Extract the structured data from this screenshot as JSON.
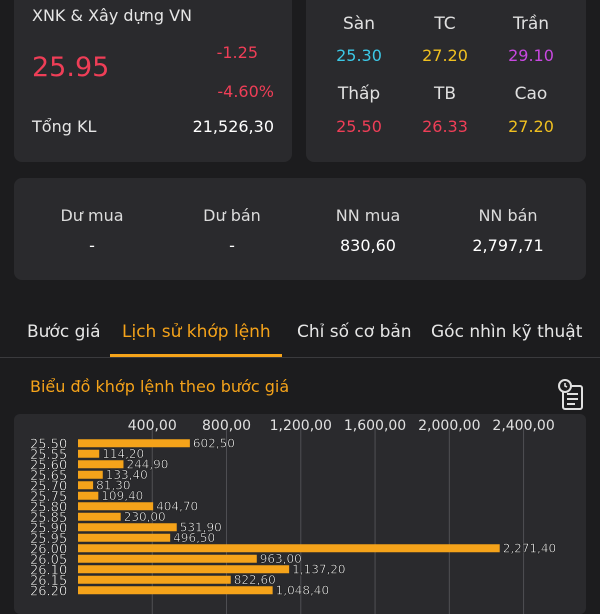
{
  "quote": {
    "name": "XNK & Xây dựng VN",
    "price": "25.95",
    "change": "-1.25",
    "change_pct": "-4.60%",
    "volume_label": "Tổng KL",
    "volume_value": "21,526,30"
  },
  "range": {
    "items": [
      {
        "label": "Sàn",
        "value": "25.30",
        "color": "#3cc8e6"
      },
      {
        "label": "TC",
        "value": "27.20",
        "color": "#f0c020"
      },
      {
        "label": "Trần",
        "value": "29.10",
        "color": "#c848e0"
      },
      {
        "label": "Thấp",
        "value": "25.50",
        "color": "#ef3e57"
      },
      {
        "label": "TB",
        "value": "26.33",
        "color": "#ef3e57"
      },
      {
        "label": "Cao",
        "value": "27.20",
        "color": "#f0c020"
      }
    ]
  },
  "flow": {
    "items": [
      {
        "label": "Dư mua",
        "value": "-"
      },
      {
        "label": "Dư bán",
        "value": "-"
      },
      {
        "label": "NN mua",
        "value": "830,60"
      },
      {
        "label": "NN bán",
        "value": "2,797,71"
      }
    ]
  },
  "tabs": [
    {
      "label": "Bước giá",
      "active": false
    },
    {
      "label": "Lịch sử khớp lệnh",
      "active": true
    },
    {
      "label": "Chỉ số cơ bản",
      "active": false
    },
    {
      "label": "Góc nhìn kỹ thuật",
      "active": false
    }
  ],
  "chart_section": {
    "title": "Biểu đồ khớp lệnh theo bước giá",
    "icon": "calendar-icon"
  },
  "chart_data": {
    "type": "bar",
    "orientation": "horizontal",
    "bar_color": "#f5a31a",
    "xticks": [
      "400,00",
      "800,00",
      "1,200,00",
      "1,600,00",
      "2,000,00",
      "2,400,00"
    ],
    "xtick_values": [
      400,
      800,
      1200,
      1600,
      2000,
      2400
    ],
    "xlim": [
      0,
      2650
    ],
    "grid": true,
    "categories": [
      "25.50",
      "25.55",
      "25.60",
      "25.65",
      "25.70",
      "25.75",
      "25.80",
      "25.85",
      "25.90",
      "25.95",
      "26.00",
      "26.05",
      "26.10",
      "26.15",
      "26.20"
    ],
    "values": [
      602.5,
      114.2,
      244.9,
      133.4,
      81.3,
      109.4,
      404.7,
      230.0,
      531.9,
      496.5,
      2271.4,
      963.0,
      1137.2,
      822.6,
      1048.4
    ],
    "value_labels": [
      "602,50",
      "114,20",
      "244,90",
      "133,40",
      "81,30",
      "109,40",
      "404,70",
      "230,00",
      "531,90",
      "496,50",
      "2,271,40",
      "963,00",
      "1,137,20",
      "822,60",
      "1,048,40"
    ]
  }
}
